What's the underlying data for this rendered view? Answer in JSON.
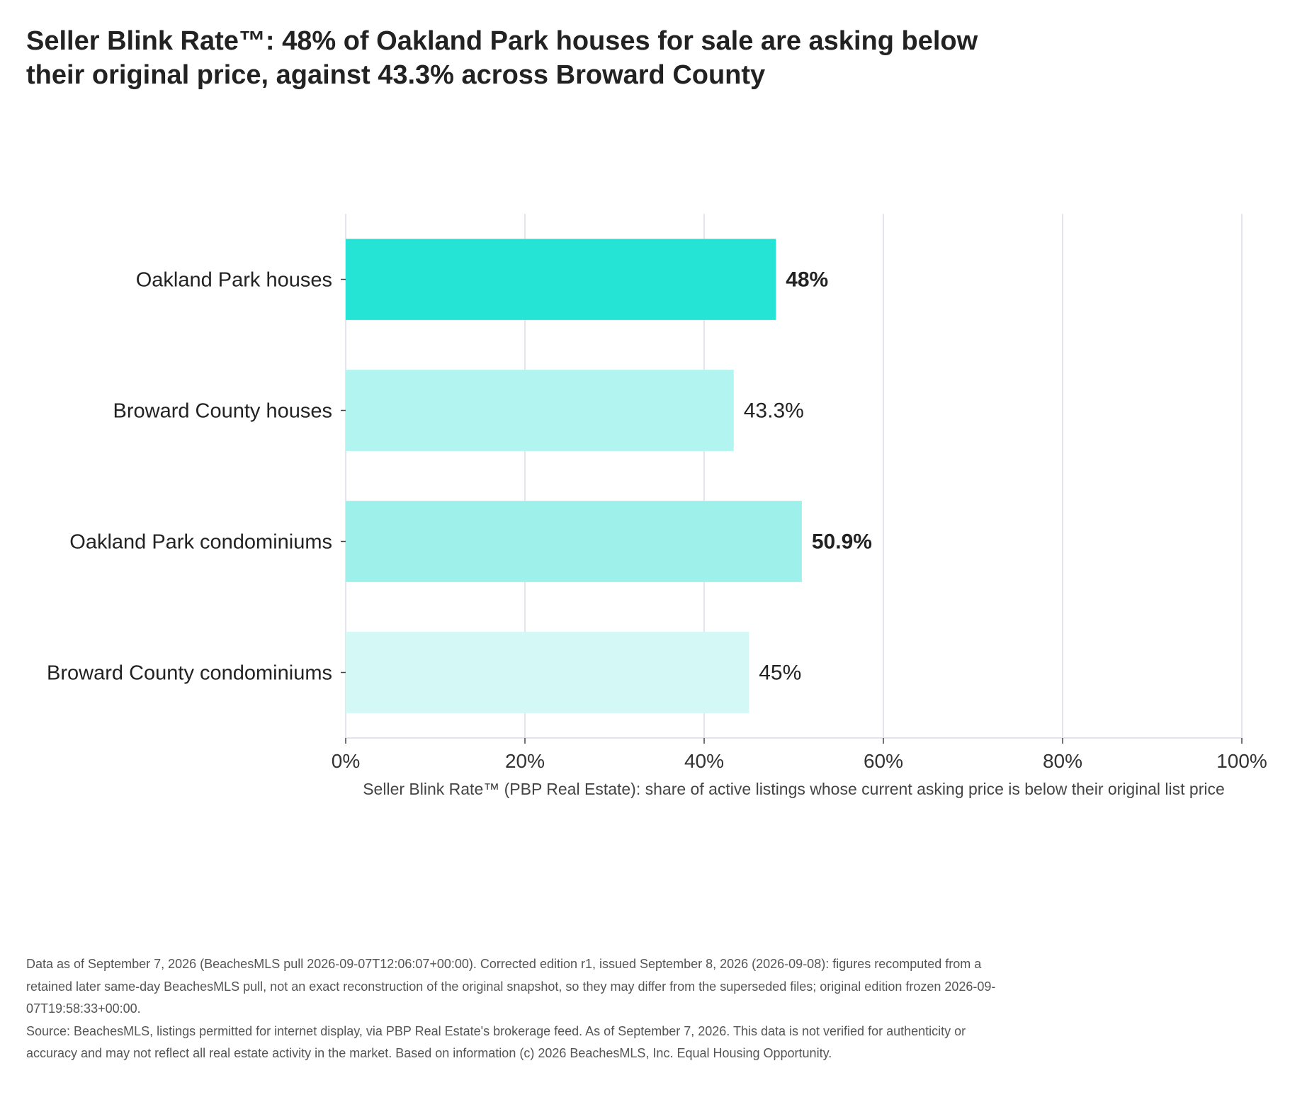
{
  "chart_data": {
    "type": "bar",
    "orientation": "horizontal",
    "title": "Seller Blink Rate™: 48% of Oakland Park houses for sale are asking below their original price, against 43.3% across Broward County",
    "categories": [
      "Oakland Park houses",
      "Broward County houses",
      "Oakland Park condominiums",
      "Broward County condominiums"
    ],
    "values": [
      48,
      43.3,
      50.9,
      45
    ],
    "value_labels": [
      "48%",
      "43.3%",
      "50.9%",
      "45%"
    ],
    "value_label_bold": [
      true,
      false,
      true,
      false
    ],
    "bar_colors": [
      "#26e4d5",
      "#b2f4ef",
      "#9ef1ea",
      "#d4f8f5"
    ],
    "xlabel": "Seller Blink Rate™ (PBP Real Estate): share of active listings whose current asking price is below their original list price",
    "xlim": [
      0,
      100
    ],
    "xticks": [
      0,
      20,
      40,
      60,
      80,
      100
    ],
    "xtick_labels": [
      "0%",
      "20%",
      "40%",
      "60%",
      "80%",
      "100%"
    ],
    "grid": "vertical",
    "grid_color": "#e4e4ee"
  },
  "footnote": {
    "data_note": "Data as of September 7, 2026 (BeachesMLS pull 2026-09-07T12:06:07+00:00). Corrected edition r1, issued September 8, 2026 (2026-09-08): figures recomputed from a retained later same-day BeachesMLS pull, not an exact reconstruction of the original snapshot, so they may differ from the superseded files; original edition frozen 2026-09-07T19:58:33+00:00.",
    "source": "Source: BeachesMLS, listings permitted for internet display, via PBP Real Estate's brokerage feed. As of September 7, 2026. This data is not verified for authenticity or accuracy and may not reflect all real estate activity in the market. Based on information (c) 2026 BeachesMLS, Inc. Equal Housing Opportunity."
  }
}
